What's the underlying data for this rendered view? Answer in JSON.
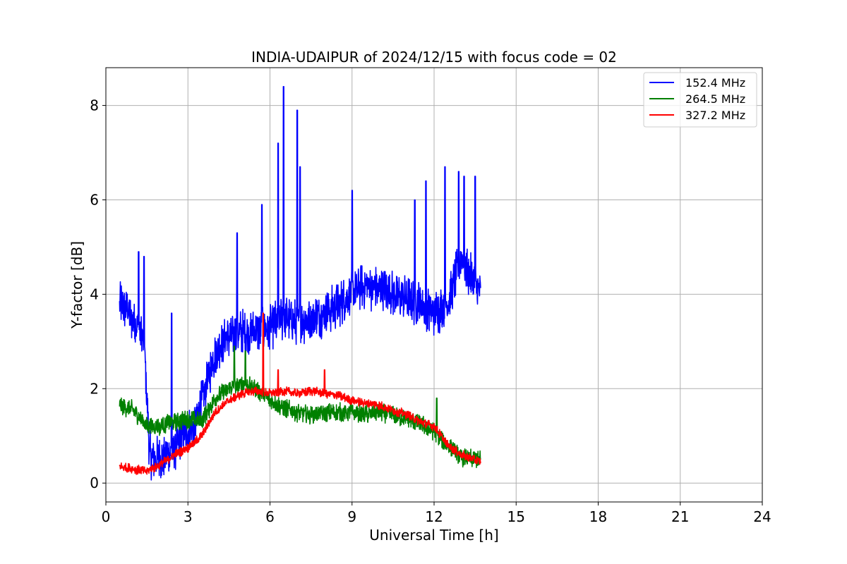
{
  "chart_data": {
    "type": "line",
    "title": "INDIA-UDAIPUR of 2024/12/15 with focus code = 02",
    "xlabel": "Universal Time [h]",
    "ylabel": "Y-factor [dB]",
    "xlim": [
      0,
      24
    ],
    "ylim": [
      -0.4,
      8.8
    ],
    "xticks": [
      0,
      3,
      6,
      9,
      12,
      15,
      18,
      21,
      24
    ],
    "xtick_labels": [
      "0",
      "3",
      "6",
      "9",
      "12",
      "15",
      "18",
      "21",
      "24"
    ],
    "yticks": [
      0,
      2,
      4,
      6,
      8
    ],
    "ytick_labels": [
      "0",
      "2",
      "4",
      "6",
      "8"
    ],
    "grid": true,
    "legend_position": "top-right",
    "series": [
      {
        "name": "152.4 MHz",
        "color": "#0000ff",
        "x": [
          0.5,
          0.8,
          1.0,
          1.2,
          1.4,
          1.6,
          1.8,
          2.0,
          2.2,
          2.5,
          2.8,
          3.0,
          3.3,
          3.6,
          3.9,
          4.2,
          4.6,
          5.0,
          5.5,
          6.0,
          6.5,
          7.0,
          7.5,
          8.0,
          8.5,
          9.0,
          9.5,
          10.0,
          10.5,
          11.0,
          11.5,
          12.0,
          12.5,
          13.0,
          13.3,
          13.7
        ],
        "values": [
          3.8,
          3.7,
          3.4,
          3.3,
          3.0,
          0.6,
          0.5,
          0.5,
          0.6,
          0.7,
          1.0,
          1.1,
          1.3,
          1.9,
          2.6,
          3.0,
          3.1,
          3.2,
          3.2,
          3.3,
          3.5,
          3.4,
          3.5,
          3.6,
          3.8,
          4.0,
          4.2,
          4.1,
          4.0,
          3.9,
          3.8,
          3.6,
          3.8,
          4.8,
          4.4,
          4.0
        ],
        "peaks": [
          {
            "x": 1.2,
            "value": 4.9
          },
          {
            "x": 1.4,
            "value": 4.8
          },
          {
            "x": 2.4,
            "value": 3.6
          },
          {
            "x": 4.8,
            "value": 5.3
          },
          {
            "x": 5.7,
            "value": 5.9
          },
          {
            "x": 6.3,
            "value": 7.2
          },
          {
            "x": 6.5,
            "value": 8.4
          },
          {
            "x": 7.0,
            "value": 7.9
          },
          {
            "x": 7.1,
            "value": 6.7
          },
          {
            "x": 9.0,
            "value": 6.2
          },
          {
            "x": 11.3,
            "value": 6.0
          },
          {
            "x": 11.7,
            "value": 6.4
          },
          {
            "x": 12.4,
            "value": 6.7
          },
          {
            "x": 12.9,
            "value": 6.6
          },
          {
            "x": 13.1,
            "value": 6.5
          },
          {
            "x": 13.5,
            "value": 6.5
          }
        ]
      },
      {
        "name": "264.5 MHz",
        "color": "#008000",
        "x": [
          0.5,
          1.0,
          1.5,
          2.0,
          2.5,
          3.0,
          3.5,
          4.0,
          4.5,
          5.0,
          5.5,
          6.0,
          6.5,
          7.0,
          7.5,
          8.0,
          8.5,
          9.0,
          9.5,
          10.0,
          10.5,
          11.0,
          11.5,
          12.0,
          12.5,
          13.0,
          13.7
        ],
        "values": [
          1.65,
          1.55,
          1.2,
          1.2,
          1.3,
          1.35,
          1.3,
          1.8,
          2.0,
          2.1,
          2.0,
          1.75,
          1.6,
          1.5,
          1.45,
          1.5,
          1.5,
          1.5,
          1.45,
          1.5,
          1.45,
          1.35,
          1.25,
          1.1,
          0.8,
          0.55,
          0.5
        ],
        "peaks": [
          {
            "x": 4.7,
            "value": 2.9
          },
          {
            "x": 5.1,
            "value": 2.8
          },
          {
            "x": 12.1,
            "value": 1.8
          }
        ]
      },
      {
        "name": "327.2 MHz",
        "color": "#ff0000",
        "x": [
          0.5,
          1.0,
          1.5,
          2.0,
          2.5,
          3.0,
          3.5,
          4.0,
          4.5,
          5.0,
          5.5,
          6.0,
          6.5,
          7.0,
          7.5,
          8.0,
          8.5,
          9.0,
          9.5,
          10.0,
          10.5,
          11.0,
          11.5,
          12.0,
          12.5,
          13.0,
          13.7
        ],
        "values": [
          0.35,
          0.3,
          0.25,
          0.4,
          0.6,
          0.75,
          1.0,
          1.5,
          1.75,
          1.9,
          1.95,
          1.9,
          1.95,
          1.9,
          1.95,
          1.9,
          1.85,
          1.75,
          1.7,
          1.65,
          1.55,
          1.45,
          1.3,
          1.2,
          0.8,
          0.6,
          0.45
        ],
        "peaks": [
          {
            "x": 5.75,
            "value": 3.6
          },
          {
            "x": 6.3,
            "value": 2.4
          },
          {
            "x": 8.0,
            "value": 2.4
          }
        ]
      }
    ]
  }
}
